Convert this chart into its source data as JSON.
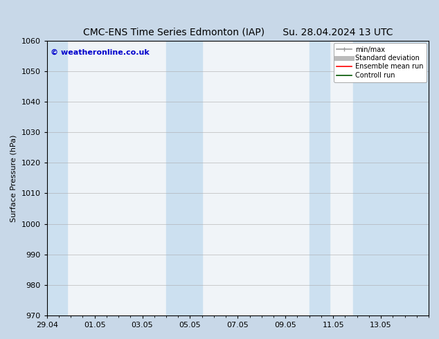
{
  "title_left": "CMC-ENS Time Series Edmonton (IAP)",
  "title_right": "Su. 28.04.2024 13 UTC",
  "ylabel": "Surface Pressure (hPa)",
  "ylim": [
    970,
    1060
  ],
  "yticks": [
    970,
    980,
    990,
    1000,
    1010,
    1020,
    1030,
    1040,
    1050,
    1060
  ],
  "xlim_start": 0,
  "xlim_end": 16,
  "xtick_labels": [
    "29.04",
    "01.05",
    "03.05",
    "05.05",
    "07.05",
    "09.05",
    "11.05",
    "13.05"
  ],
  "xtick_positions": [
    0,
    2,
    4,
    6,
    8,
    10,
    12,
    14
  ],
  "watermark": "© weatheronline.co.uk",
  "watermark_color": "#0000cc",
  "fig_bg_color": "#c8d8e8",
  "plot_bg_color": "#f0f4f8",
  "shaded_bands": [
    {
      "x_start": 0,
      "x_end": 0.85,
      "color": "#cce0f0"
    },
    {
      "x_start": 5.0,
      "x_end": 6.5,
      "color": "#cce0f0"
    },
    {
      "x_start": 11.0,
      "x_end": 11.85,
      "color": "#cce0f0"
    },
    {
      "x_start": 12.85,
      "x_end": 16,
      "color": "#cce0f0"
    }
  ],
  "legend_items": [
    {
      "label": "min/max",
      "color": "#999999",
      "lw": 1.2
    },
    {
      "label": "Standard deviation",
      "color": "#bbbbbb",
      "lw": 5
    },
    {
      "label": "Ensemble mean run",
      "color": "#ff0000",
      "lw": 1.2
    },
    {
      "label": "Controll run",
      "color": "#005500",
      "lw": 1.2
    }
  ],
  "title_fontsize": 10,
  "tick_fontsize": 8,
  "label_fontsize": 8,
  "watermark_fontsize": 8
}
